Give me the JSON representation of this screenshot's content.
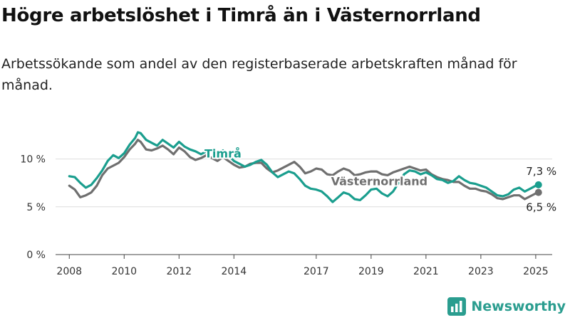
{
  "header": {
    "title": "Högre arbetslöshet i Timrå än i Västernorrland",
    "subtitle": "Arbetssökande som andel av den registerbaserade arbetskraften månad för månad."
  },
  "brand": {
    "name": "Newsworthy",
    "color": "#2a9d8f"
  },
  "chart_data": {
    "type": "line",
    "x_ticks": [
      "2008",
      "2010",
      "2012",
      "2014",
      "2017",
      "2019",
      "2021",
      "2023",
      "2025"
    ],
    "y_ticks": [
      "0 %",
      "5 %",
      "10 %"
    ],
    "ylim": [
      0,
      12.5
    ],
    "xlim": [
      2007.5,
      2025.6
    ],
    "grid": true,
    "series": [
      {
        "name": "Timrå",
        "color": "#1a9e8e",
        "end_label": "7,3 %",
        "points": [
          [
            2008.0,
            8.2
          ],
          [
            2008.2,
            8.1
          ],
          [
            2008.4,
            7.5
          ],
          [
            2008.6,
            7.0
          ],
          [
            2008.8,
            7.3
          ],
          [
            2009.0,
            8.0
          ],
          [
            2009.2,
            8.8
          ],
          [
            2009.4,
            9.8
          ],
          [
            2009.6,
            10.4
          ],
          [
            2009.8,
            10.1
          ],
          [
            2010.0,
            10.6
          ],
          [
            2010.2,
            11.5
          ],
          [
            2010.4,
            12.2
          ],
          [
            2010.5,
            12.8
          ],
          [
            2010.6,
            12.7
          ],
          [
            2010.8,
            12.0
          ],
          [
            2011.0,
            11.7
          ],
          [
            2011.2,
            11.4
          ],
          [
            2011.4,
            12.0
          ],
          [
            2011.6,
            11.6
          ],
          [
            2011.8,
            11.2
          ],
          [
            2012.0,
            11.8
          ],
          [
            2012.2,
            11.3
          ],
          [
            2012.4,
            11.0
          ],
          [
            2012.6,
            10.8
          ],
          [
            2012.8,
            10.5
          ],
          [
            2013.0,
            10.8
          ],
          [
            2013.2,
            11.0
          ],
          [
            2013.4,
            10.6
          ],
          [
            2013.6,
            10.9
          ],
          [
            2013.8,
            10.4
          ],
          [
            2014.0,
            9.8
          ],
          [
            2014.2,
            9.5
          ],
          [
            2014.4,
            9.2
          ],
          [
            2014.6,
            9.4
          ],
          [
            2014.8,
            9.7
          ],
          [
            2015.0,
            9.9
          ],
          [
            2015.2,
            9.4
          ],
          [
            2015.4,
            8.6
          ],
          [
            2015.6,
            8.1
          ],
          [
            2015.8,
            8.4
          ],
          [
            2016.0,
            8.7
          ],
          [
            2016.2,
            8.5
          ],
          [
            2016.4,
            7.9
          ],
          [
            2016.6,
            7.2
          ],
          [
            2016.8,
            6.9
          ],
          [
            2017.0,
            6.8
          ],
          [
            2017.2,
            6.6
          ],
          [
            2017.4,
            6.1
          ],
          [
            2017.6,
            5.5
          ],
          [
            2017.8,
            6.0
          ],
          [
            2018.0,
            6.5
          ],
          [
            2018.2,
            6.3
          ],
          [
            2018.4,
            5.8
          ],
          [
            2018.6,
            5.7
          ],
          [
            2018.8,
            6.2
          ],
          [
            2019.0,
            6.8
          ],
          [
            2019.2,
            6.9
          ],
          [
            2019.4,
            6.4
          ],
          [
            2019.6,
            6.1
          ],
          [
            2019.8,
            6.6
          ],
          [
            2020.0,
            7.5
          ],
          [
            2020.2,
            8.4
          ],
          [
            2020.4,
            8.8
          ],
          [
            2020.6,
            8.7
          ],
          [
            2020.8,
            8.4
          ],
          [
            2021.0,
            8.6
          ],
          [
            2021.2,
            8.3
          ],
          [
            2021.4,
            7.9
          ],
          [
            2021.6,
            7.8
          ],
          [
            2021.8,
            7.5
          ],
          [
            2022.0,
            7.7
          ],
          [
            2022.2,
            8.2
          ],
          [
            2022.4,
            7.8
          ],
          [
            2022.6,
            7.5
          ],
          [
            2022.8,
            7.4
          ],
          [
            2023.0,
            7.2
          ],
          [
            2023.2,
            7.0
          ],
          [
            2023.4,
            6.6
          ],
          [
            2023.6,
            6.2
          ],
          [
            2023.8,
            6.1
          ],
          [
            2024.0,
            6.3
          ],
          [
            2024.2,
            6.8
          ],
          [
            2024.4,
            7.0
          ],
          [
            2024.6,
            6.6
          ],
          [
            2024.8,
            6.9
          ],
          [
            2025.0,
            7.2
          ],
          [
            2025.1,
            7.3
          ]
        ]
      },
      {
        "name": "Västernorrland",
        "color": "#6f6f6f",
        "end_label": "6,5 %",
        "points": [
          [
            2008.0,
            7.2
          ],
          [
            2008.2,
            6.8
          ],
          [
            2008.4,
            6.0
          ],
          [
            2008.6,
            6.2
          ],
          [
            2008.8,
            6.5
          ],
          [
            2009.0,
            7.2
          ],
          [
            2009.2,
            8.3
          ],
          [
            2009.4,
            9.0
          ],
          [
            2009.6,
            9.3
          ],
          [
            2009.8,
            9.6
          ],
          [
            2010.0,
            10.2
          ],
          [
            2010.2,
            11.0
          ],
          [
            2010.4,
            11.6
          ],
          [
            2010.5,
            12.0
          ],
          [
            2010.6,
            11.8
          ],
          [
            2010.8,
            11.0
          ],
          [
            2011.0,
            10.9
          ],
          [
            2011.2,
            11.1
          ],
          [
            2011.4,
            11.4
          ],
          [
            2011.6,
            11.0
          ],
          [
            2011.8,
            10.5
          ],
          [
            2012.0,
            11.2
          ],
          [
            2012.2,
            10.8
          ],
          [
            2012.4,
            10.2
          ],
          [
            2012.6,
            9.9
          ],
          [
            2012.8,
            10.1
          ],
          [
            2013.0,
            10.4
          ],
          [
            2013.2,
            10.1
          ],
          [
            2013.4,
            9.8
          ],
          [
            2013.6,
            10.2
          ],
          [
            2013.8,
            9.8
          ],
          [
            2014.0,
            9.4
          ],
          [
            2014.2,
            9.1
          ],
          [
            2014.4,
            9.2
          ],
          [
            2014.6,
            9.5
          ],
          [
            2014.8,
            9.6
          ],
          [
            2015.0,
            9.6
          ],
          [
            2015.2,
            9.0
          ],
          [
            2015.4,
            8.6
          ],
          [
            2015.6,
            8.8
          ],
          [
            2015.8,
            9.1
          ],
          [
            2016.0,
            9.4
          ],
          [
            2016.2,
            9.7
          ],
          [
            2016.4,
            9.2
          ],
          [
            2016.6,
            8.5
          ],
          [
            2016.8,
            8.7
          ],
          [
            2017.0,
            9.0
          ],
          [
            2017.2,
            8.9
          ],
          [
            2017.4,
            8.4
          ],
          [
            2017.6,
            8.3
          ],
          [
            2017.8,
            8.7
          ],
          [
            2018.0,
            9.0
          ],
          [
            2018.2,
            8.8
          ],
          [
            2018.4,
            8.3
          ],
          [
            2018.6,
            8.4
          ],
          [
            2018.8,
            8.6
          ],
          [
            2019.0,
            8.7
          ],
          [
            2019.2,
            8.7
          ],
          [
            2019.4,
            8.4
          ],
          [
            2019.6,
            8.3
          ],
          [
            2019.8,
            8.6
          ],
          [
            2020.0,
            8.8
          ],
          [
            2020.2,
            9.0
          ],
          [
            2020.4,
            9.2
          ],
          [
            2020.6,
            9.0
          ],
          [
            2020.8,
            8.8
          ],
          [
            2021.0,
            8.9
          ],
          [
            2021.2,
            8.4
          ],
          [
            2021.4,
            8.1
          ],
          [
            2021.6,
            7.9
          ],
          [
            2021.8,
            7.8
          ],
          [
            2022.0,
            7.6
          ],
          [
            2022.2,
            7.6
          ],
          [
            2022.4,
            7.2
          ],
          [
            2022.6,
            6.9
          ],
          [
            2022.8,
            6.9
          ],
          [
            2023.0,
            6.7
          ],
          [
            2023.2,
            6.6
          ],
          [
            2023.4,
            6.3
          ],
          [
            2023.6,
            5.9
          ],
          [
            2023.8,
            5.8
          ],
          [
            2024.0,
            6.0
          ],
          [
            2024.2,
            6.2
          ],
          [
            2024.4,
            6.2
          ],
          [
            2024.6,
            5.8
          ],
          [
            2024.8,
            6.1
          ],
          [
            2025.0,
            6.4
          ],
          [
            2025.1,
            6.5
          ]
        ]
      }
    ]
  }
}
